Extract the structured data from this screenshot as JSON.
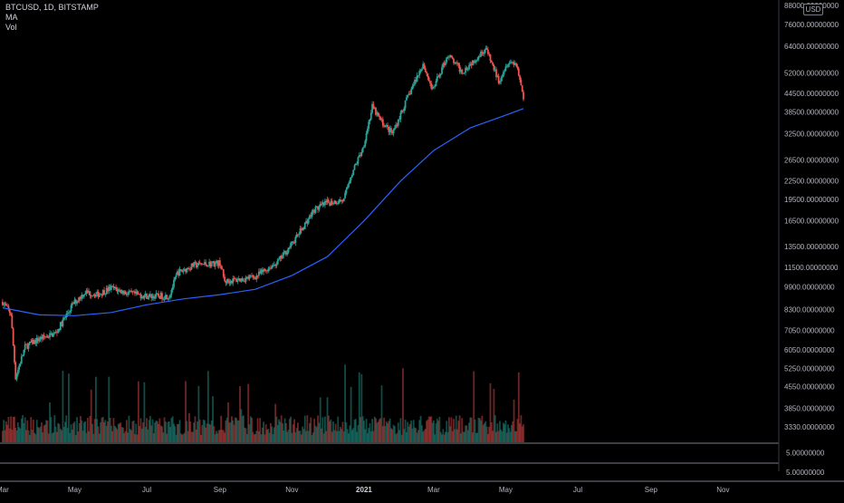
{
  "legend": {
    "symbol": "BTCUSD, 1D, BITSTAMP",
    "ma": "MA",
    "vol": "Vol"
  },
  "currency": "USD",
  "colors": {
    "up": "#26a69a",
    "down": "#ef5350",
    "ma": "#2962ff",
    "grid": "#2a2e39",
    "background": "#000000"
  },
  "chart_data": {
    "type": "candlestick",
    "scale": "log",
    "grid": false,
    "yaxis": {
      "ticks": [
        {
          "value": 88000,
          "label": "88000.00000000"
        },
        {
          "value": 76000,
          "label": "76000.00000000"
        },
        {
          "value": 64000,
          "label": "64000.00000000"
        },
        {
          "value": 52000,
          "label": "52000.00000000"
        },
        {
          "value": 44500,
          "label": "44500.00000000"
        },
        {
          "value": 38500,
          "label": "38500.00000000"
        },
        {
          "value": 32500,
          "label": "32500.00000000"
        },
        {
          "value": 26500,
          "label": "26500.00000000"
        },
        {
          "value": 22500,
          "label": "22500.00000000"
        },
        {
          "value": 19500,
          "label": "19500.00000000"
        },
        {
          "value": 16500,
          "label": "16500.00000000"
        },
        {
          "value": 13500,
          "label": "13500.00000000"
        },
        {
          "value": 11500,
          "label": "11500.00000000"
        },
        {
          "value": 9900,
          "label": "9900.00000000"
        },
        {
          "value": 8300,
          "label": "8300.00000000"
        },
        {
          "value": 7050,
          "label": "7050.00000000"
        },
        {
          "value": 6050,
          "label": "6050.00000000"
        },
        {
          "value": 5250,
          "label": "5250.00000000"
        },
        {
          "value": 4550,
          "label": "4550.00000000"
        },
        {
          "value": 3850,
          "label": "3850.00000000"
        },
        {
          "value": 3330,
          "label": "3330.00000000"
        }
      ]
    },
    "xaxis": {
      "ticks": [
        {
          "label": "Mar",
          "date": "2020-03-01"
        },
        {
          "label": "May",
          "date": "2020-05-01"
        },
        {
          "label": "Jul",
          "date": "2020-07-01"
        },
        {
          "label": "Sep",
          "date": "2020-09-01"
        },
        {
          "label": "Nov",
          "date": "2020-11-01"
        },
        {
          "label": "2021",
          "date": "2021-01-01",
          "bold": true
        },
        {
          "label": "Mar",
          "date": "2021-03-01"
        },
        {
          "label": "May",
          "date": "2021-05-01"
        },
        {
          "label": "Jul",
          "date": "2021-07-01"
        },
        {
          "label": "Sep",
          "date": "2021-09-01"
        },
        {
          "label": "Nov",
          "date": "2021-11-01"
        }
      ]
    },
    "lower_panes": [
      {
        "label": "5.00000000"
      },
      {
        "label": "5.00000000"
      }
    ],
    "price_path": [
      {
        "date": "2020-03-01",
        "close": 8800
      },
      {
        "date": "2020-03-08",
        "close": 8000
      },
      {
        "date": "2020-03-12",
        "close": 4900
      },
      {
        "date": "2020-03-20",
        "close": 6200
      },
      {
        "date": "2020-04-01",
        "close": 6600
      },
      {
        "date": "2020-04-15",
        "close": 6900
      },
      {
        "date": "2020-04-30",
        "close": 8700
      },
      {
        "date": "2020-05-10",
        "close": 9500
      },
      {
        "date": "2020-05-20",
        "close": 9300
      },
      {
        "date": "2020-06-01",
        "close": 9800
      },
      {
        "date": "2020-06-15",
        "close": 9400
      },
      {
        "date": "2020-07-01",
        "close": 9200
      },
      {
        "date": "2020-07-20",
        "close": 9200
      },
      {
        "date": "2020-07-27",
        "close": 11000
      },
      {
        "date": "2020-08-10",
        "close": 11700
      },
      {
        "date": "2020-08-20",
        "close": 11800
      },
      {
        "date": "2020-09-01",
        "close": 11900
      },
      {
        "date": "2020-09-05",
        "close": 10300
      },
      {
        "date": "2020-09-20",
        "close": 10500
      },
      {
        "date": "2020-10-01",
        "close": 10700
      },
      {
        "date": "2020-10-20",
        "close": 12000
      },
      {
        "date": "2020-11-01",
        "close": 13800
      },
      {
        "date": "2020-11-20",
        "close": 18000
      },
      {
        "date": "2020-12-01",
        "close": 19000
      },
      {
        "date": "2020-12-15",
        "close": 19400
      },
      {
        "date": "2020-12-20",
        "close": 23000
      },
      {
        "date": "2020-12-31",
        "close": 29000
      },
      {
        "date": "2021-01-08",
        "close": 40000
      },
      {
        "date": "2021-01-15",
        "close": 36000
      },
      {
        "date": "2021-01-25",
        "close": 32500
      },
      {
        "date": "2021-02-08",
        "close": 44000
      },
      {
        "date": "2021-02-20",
        "close": 56000
      },
      {
        "date": "2021-02-28",
        "close": 45500
      },
      {
        "date": "2021-03-13",
        "close": 60000
      },
      {
        "date": "2021-03-25",
        "close": 52500
      },
      {
        "date": "2021-04-05",
        "close": 58000
      },
      {
        "date": "2021-04-14",
        "close": 63000
      },
      {
        "date": "2021-04-25",
        "close": 49000
      },
      {
        "date": "2021-05-03",
        "close": 57000
      },
      {
        "date": "2021-05-10",
        "close": 56000
      },
      {
        "date": "2021-05-13",
        "close": 49500
      },
      {
        "date": "2021-05-16",
        "close": 43000
      }
    ],
    "ma_path": [
      {
        "date": "2020-03-01",
        "value": 8400
      },
      {
        "date": "2020-04-01",
        "value": 7950
      },
      {
        "date": "2020-05-01",
        "value": 7900
      },
      {
        "date": "2020-06-01",
        "value": 8100
      },
      {
        "date": "2020-07-01",
        "value": 8600
      },
      {
        "date": "2020-08-01",
        "value": 9000
      },
      {
        "date": "2020-09-01",
        "value": 9300
      },
      {
        "date": "2020-10-01",
        "value": 9700
      },
      {
        "date": "2020-11-01",
        "value": 10800
      },
      {
        "date": "2020-12-01",
        "value": 12500
      },
      {
        "date": "2021-01-01",
        "value": 16500
      },
      {
        "date": "2021-02-01",
        "value": 22500
      },
      {
        "date": "2021-03-01",
        "value": 28500
      },
      {
        "date": "2021-04-01",
        "value": 34000
      },
      {
        "date": "2021-05-01",
        "value": 37500
      },
      {
        "date": "2021-05-16",
        "value": 39500
      }
    ]
  }
}
